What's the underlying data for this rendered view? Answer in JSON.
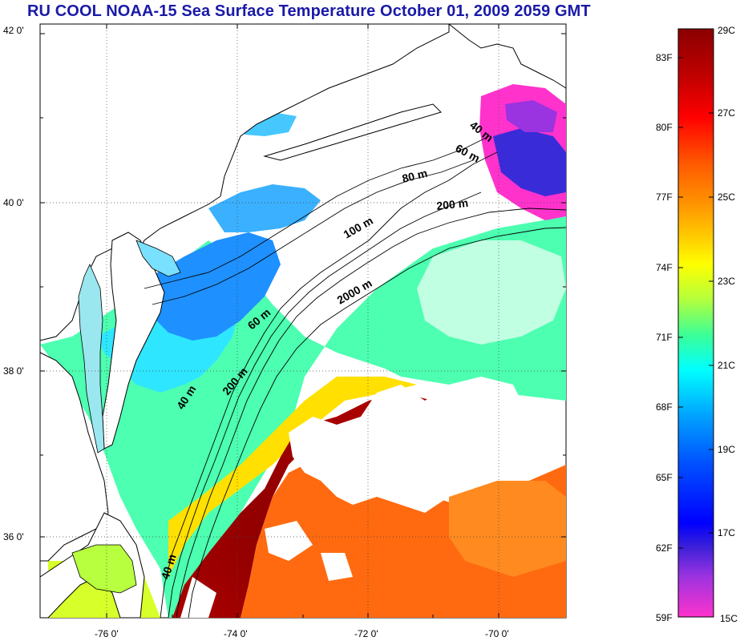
{
  "title": "RU COOL  NOAA-15 Sea Surface Temperature October 01, 2009 2059 GMT",
  "map": {
    "lat_labels": [
      "42 0'",
      "40 0'",
      "38 0'",
      "36 0'"
    ],
    "lon_labels": [
      "-76 0'",
      "-74 0'",
      "-72 0'",
      "-70 0'"
    ],
    "isobath_labels": [
      "40 m",
      "60 m",
      "80 m",
      "200 m",
      "100 m",
      "2000 m",
      "60 m",
      "200 m",
      "40 m",
      "40 m"
    ]
  },
  "colorbar": {
    "fahrenheit_labels": [
      "83F",
      "80F",
      "77F",
      "74F",
      "71F",
      "68F",
      "65F",
      "62F",
      "59F"
    ],
    "celsius_labels": [
      "29C",
      "27C",
      "25C",
      "23C",
      "21C",
      "19C",
      "17C",
      "15C"
    ],
    "gradient_colors": [
      "#8b0000",
      "#c00000",
      "#ff0000",
      "#ff5a00",
      "#ff9600",
      "#ffd200",
      "#ffff00",
      "#b4ff3c",
      "#3cff96",
      "#00ffff",
      "#00a0ff",
      "#0050ff",
      "#0000ff"
    ],
    "cold_colors": [
      "#7a1fd2",
      "#c23ae8",
      "#ff33cc"
    ]
  },
  "colors": {
    "title": "#1a1aa8",
    "land": "#ffffff",
    "cloud": "#ffffff",
    "gulf_stream": "#8b0000",
    "warm_offshore": "#ff6a00",
    "shelf_water": "#3cffb4",
    "cold_shelf": "#1e90ff",
    "cold_pocket": "#ff33cc"
  }
}
